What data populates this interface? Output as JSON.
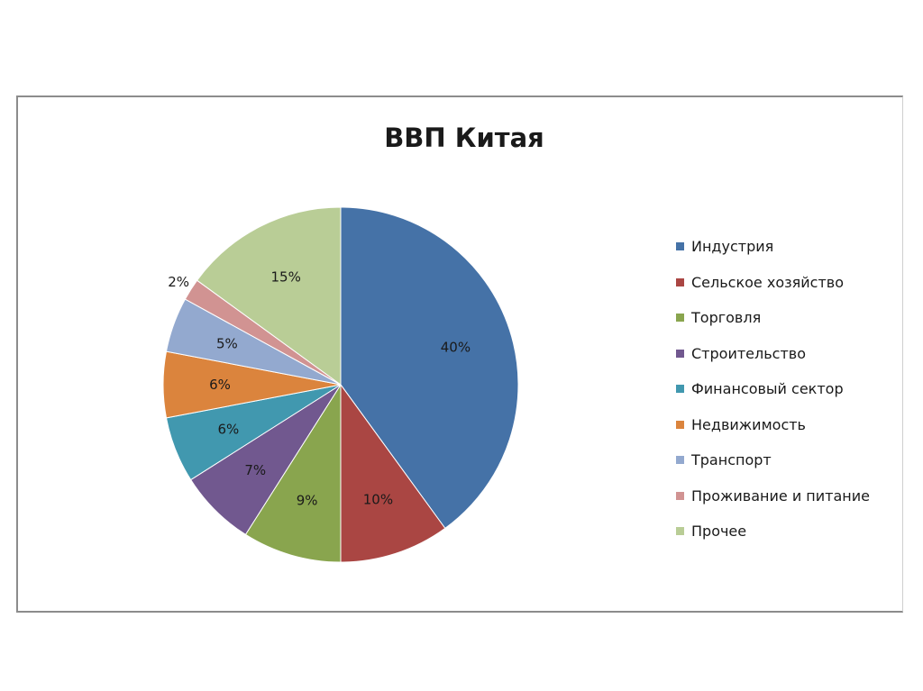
{
  "chart_data": {
    "type": "pie",
    "title": "ВВП Китая",
    "legend_position": "right",
    "categories": [
      "Индустрия",
      "Сельское хозяйство",
      "Торговля",
      "Строительство",
      "Финансовый сектор",
      "Недвижимость",
      "Транспорт",
      "Проживание и питание",
      "Прочее"
    ],
    "values": [
      40,
      10,
      9,
      7,
      6,
      6,
      5,
      2,
      15
    ],
    "labels": [
      "40%",
      "10%",
      "9%",
      "7%",
      "6%",
      "6%",
      "5%",
      "2%",
      "15%"
    ],
    "colors": [
      "#4572a7",
      "#aa4643",
      "#89a54e",
      "#71588f",
      "#4198af",
      "#db843d",
      "#93a9cf",
      "#d19392",
      "#b9cd96"
    ]
  }
}
